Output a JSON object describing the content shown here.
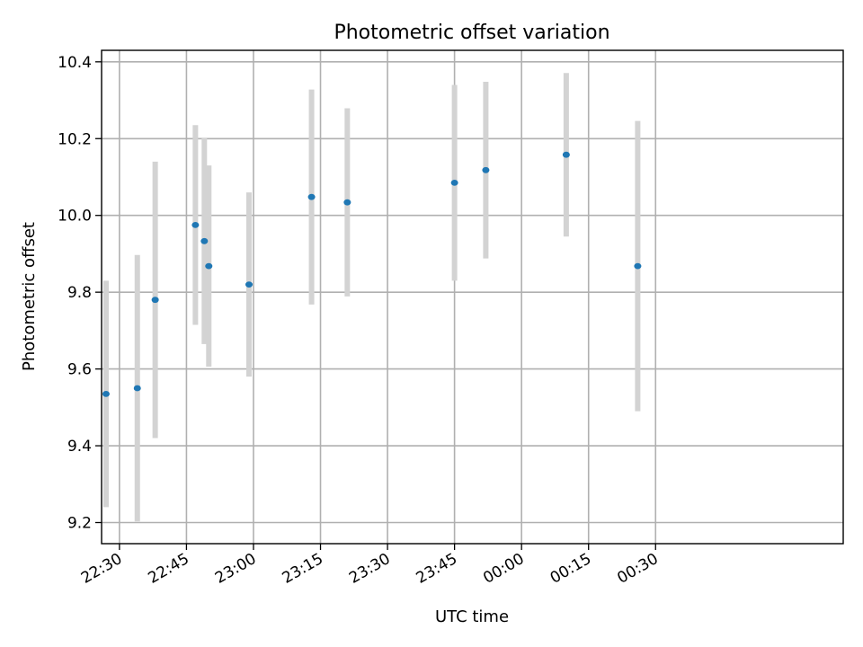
{
  "chart_data": {
    "type": "scatter",
    "title": "Photometric offset variation",
    "xlabel": "UTC time",
    "ylabel": "Photometric offset",
    "x_axis": {
      "kind": "time",
      "range_minutes": [
        1346,
        1512
      ],
      "ticks": [
        {
          "minutes": 1350,
          "label": "22:30"
        },
        {
          "minutes": 1365,
          "label": "22:45"
        },
        {
          "minutes": 1380,
          "label": "23:00"
        },
        {
          "minutes": 1395,
          "label": "23:15"
        },
        {
          "minutes": 1410,
          "label": "23:30"
        },
        {
          "minutes": 1425,
          "label": "23:45"
        },
        {
          "minutes": 1440,
          "label": "00:00"
        },
        {
          "minutes": 1455,
          "label": "00:15"
        },
        {
          "minutes": 1470,
          "label": "00:30"
        }
      ]
    },
    "y_axis": {
      "range": [
        9.145,
        10.43
      ],
      "ticks": [
        {
          "value": 9.2,
          "label": "9.2"
        },
        {
          "value": 9.4,
          "label": "9.4"
        },
        {
          "value": 9.6,
          "label": "9.6"
        },
        {
          "value": 9.8,
          "label": "9.8"
        },
        {
          "value": 10.0,
          "label": "10.0"
        },
        {
          "value": 10.2,
          "label": "10.2"
        },
        {
          "value": 10.4,
          "label": "10.4"
        }
      ]
    },
    "grid": true,
    "series": [
      {
        "color": "#1f77b4",
        "error_color": "#d3d3d3",
        "points": [
          {
            "time": "22:27",
            "y": 9.535,
            "err": 0.295
          },
          {
            "time": "22:34",
            "y": 9.55,
            "err": 0.347
          },
          {
            "time": "22:38",
            "y": 9.78,
            "err": 0.36
          },
          {
            "time": "22:47",
            "y": 9.975,
            "err": 0.26
          },
          {
            "time": "22:49",
            "y": 9.933,
            "err": 0.268
          },
          {
            "time": "22:50",
            "y": 9.868,
            "err": 0.262
          },
          {
            "time": "22:59",
            "y": 9.82,
            "err": 0.24
          },
          {
            "time": "23:13",
            "y": 10.048,
            "err": 0.28
          },
          {
            "time": "23:21",
            "y": 10.034,
            "err": 0.245
          },
          {
            "time": "23:45",
            "y": 10.085,
            "err": 0.255
          },
          {
            "time": "23:52",
            "y": 10.118,
            "err": 0.23
          },
          {
            "time": "00:10",
            "y": 10.158,
            "err": 0.213
          },
          {
            "time": "00:26",
            "y": 9.868,
            "err": 0.378
          }
        ]
      }
    ]
  }
}
